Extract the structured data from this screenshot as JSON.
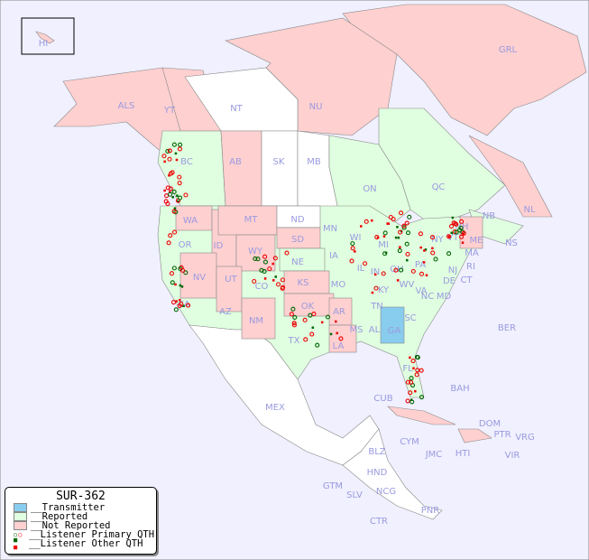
{
  "legend": {
    "title": "SUR-362",
    "items": [
      {
        "label": "__Transmitter",
        "color": "#88ccee"
      },
      {
        "label": "__Reported",
        "color": "#e0ffe0"
      },
      {
        "label": "__Not Reported",
        "color": "#ffd0d0"
      },
      {
        "label": "__Listener Primary QTH",
        "colors": [
          "#006600",
          "#ee0000"
        ]
      },
      {
        "label": "__Listener Other QTH",
        "colors": [
          "#006600",
          "#ee0000"
        ]
      }
    ]
  },
  "colors": {
    "ocean": "#f0f0ff",
    "reported": "#e0ffe0",
    "not_reported": "#ffd0d0",
    "unknown": "#ffffff",
    "transmitter": "#88ccee",
    "label": "#9a9ae0"
  },
  "regions": [
    {
      "label": "HI",
      "status": "not_reported"
    },
    {
      "label": "ALS",
      "status": "not_reported"
    },
    {
      "label": "YT",
      "status": "not_reported"
    },
    {
      "label": "NT",
      "status": "unknown"
    },
    {
      "label": "NU",
      "status": "not_reported"
    },
    {
      "label": "GRL",
      "status": "not_reported"
    },
    {
      "label": "BC",
      "status": "reported"
    },
    {
      "label": "AB",
      "status": "not_reported"
    },
    {
      "label": "SK",
      "status": "unknown"
    },
    {
      "label": "MB",
      "status": "unknown"
    },
    {
      "label": "ON",
      "status": "reported"
    },
    {
      "label": "QC",
      "status": "reported"
    },
    {
      "label": "NL",
      "status": "not_reported"
    },
    {
      "label": "NS",
      "status": "reported"
    },
    {
      "label": "NB",
      "status": "not_reported"
    },
    {
      "label": "WA",
      "status": "not_reported"
    },
    {
      "label": "OR",
      "status": "reported"
    },
    {
      "label": "ID",
      "status": "not_reported"
    },
    {
      "label": "MT",
      "status": "not_reported"
    },
    {
      "label": "WY",
      "status": "not_reported"
    },
    {
      "label": "ND",
      "status": "unknown"
    },
    {
      "label": "SD",
      "status": "not_reported"
    },
    {
      "label": "NE",
      "status": "reported"
    },
    {
      "label": "NV",
      "status": "not_reported"
    },
    {
      "label": "UT",
      "status": "not_reported"
    },
    {
      "label": "CO",
      "status": "reported"
    },
    {
      "label": "CA",
      "status": "reported"
    },
    {
      "label": "AZ",
      "status": "reported"
    },
    {
      "label": "NM",
      "status": "not_reported"
    },
    {
      "label": "KS",
      "status": "not_reported"
    },
    {
      "label": "OK",
      "status": "not_reported"
    },
    {
      "label": "TX",
      "status": "reported"
    },
    {
      "label": "MN",
      "status": "reported"
    },
    {
      "label": "IA",
      "status": "reported"
    },
    {
      "label": "WI",
      "status": "reported"
    },
    {
      "label": "MO",
      "status": "reported"
    },
    {
      "label": "AR",
      "status": "not_reported"
    },
    {
      "label": "LA",
      "status": "not_reported"
    },
    {
      "label": "MS",
      "status": "reported"
    },
    {
      "label": "AL",
      "status": "reported"
    },
    {
      "label": "GA",
      "status": "transmitter"
    },
    {
      "label": "FL",
      "status": "reported"
    },
    {
      "label": "SC",
      "status": "reported"
    },
    {
      "label": "NC",
      "status": "reported"
    },
    {
      "label": "TN",
      "status": "reported"
    },
    {
      "label": "KY",
      "status": "reported"
    },
    {
      "label": "IL",
      "status": "reported"
    },
    {
      "label": "IN",
      "status": "reported"
    },
    {
      "label": "OH",
      "status": "reported"
    },
    {
      "label": "MI",
      "status": "reported"
    },
    {
      "label": "WV",
      "status": "reported"
    },
    {
      "label": "VA",
      "status": "reported"
    },
    {
      "label": "PA",
      "status": "reported"
    },
    {
      "label": "NY",
      "status": "reported"
    },
    {
      "label": "MD",
      "status": "reported"
    },
    {
      "label": "DE",
      "status": "reported"
    },
    {
      "label": "NJ",
      "status": "reported"
    },
    {
      "label": "CT",
      "status": "reported"
    },
    {
      "label": "RI",
      "status": "reported"
    },
    {
      "label": "MA",
      "status": "reported"
    },
    {
      "label": "VT",
      "status": "not_reported"
    },
    {
      "label": "NH",
      "status": "not_reported"
    },
    {
      "label": "ME",
      "status": "not_reported"
    },
    {
      "label": "MEX",
      "status": "unknown"
    },
    {
      "label": "CUB",
      "status": "not_reported"
    },
    {
      "label": "BAH",
      "status": "unknown"
    },
    {
      "label": "BER",
      "status": "unknown"
    },
    {
      "label": "DOM",
      "status": "not_reported"
    },
    {
      "label": "PTR",
      "status": "not_reported"
    },
    {
      "label": "VRG",
      "status": "unknown"
    },
    {
      "label": "VIR",
      "status": "unknown"
    },
    {
      "label": "HTI",
      "status": "not_reported"
    },
    {
      "label": "JMC",
      "status": "unknown"
    },
    {
      "label": "CYM",
      "status": "unknown"
    },
    {
      "label": "BLZ",
      "status": "unknown"
    },
    {
      "label": "HND",
      "status": "unknown"
    },
    {
      "label": "GTM",
      "status": "unknown"
    },
    {
      "label": "SLV",
      "status": "unknown"
    },
    {
      "label": "NCG",
      "status": "unknown"
    },
    {
      "label": "CTR",
      "status": "unknown"
    },
    {
      "label": "PNR",
      "status": "unknown"
    }
  ]
}
